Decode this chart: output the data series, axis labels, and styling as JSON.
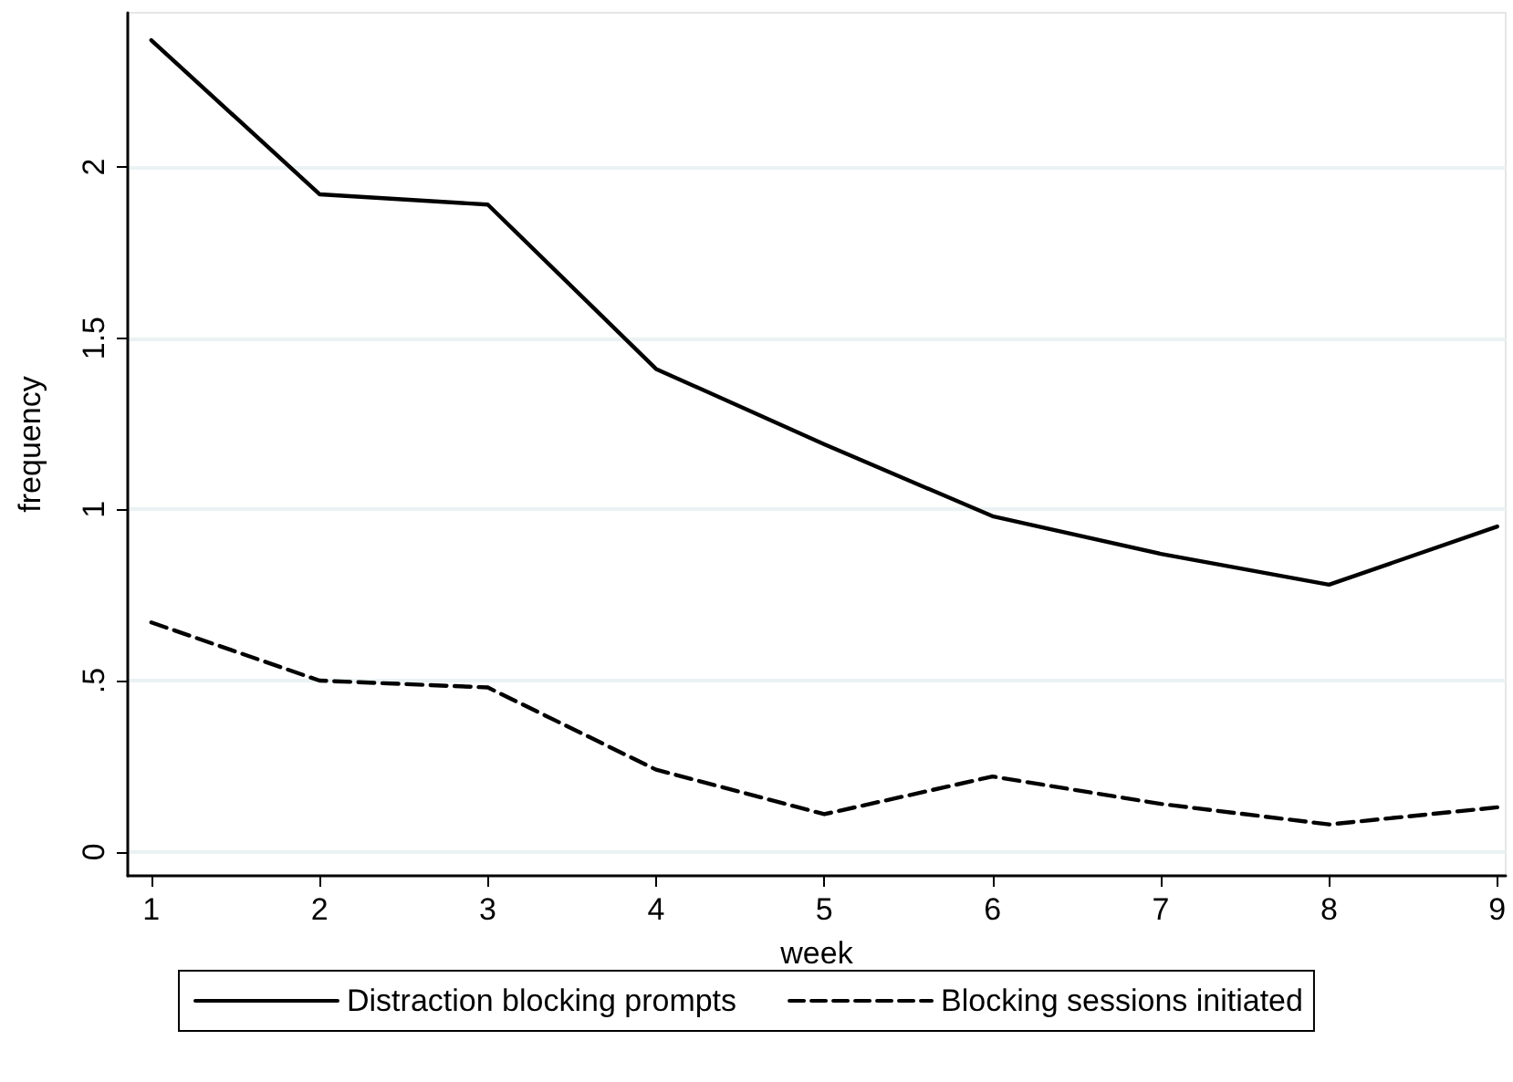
{
  "chart_data": {
    "type": "line",
    "xlabel": "week",
    "ylabel": "frequency",
    "x": [
      1,
      2,
      3,
      4,
      5,
      6,
      7,
      8,
      9
    ],
    "series": [
      {
        "name": "Distraction blocking prompts",
        "color": "#000000",
        "line_style": "solid",
        "values": [
          2.37,
          1.92,
          1.89,
          1.41,
          1.19,
          0.98,
          0.87,
          0.78,
          0.95
        ]
      },
      {
        "name": "Blocking sessions initiated",
        "color": "#000000",
        "line_style": "dashed",
        "values": [
          0.67,
          0.5,
          0.48,
          0.24,
          0.11,
          0.22,
          0.14,
          0.08,
          0.13
        ]
      }
    ],
    "xlim": [
      0.86,
      9.05
    ],
    "xticks": [
      1,
      2,
      3,
      4,
      5,
      6,
      7,
      8,
      9
    ],
    "ylim": [
      -0.07,
      2.45
    ],
    "yticks": [
      0,
      {
        "value": 0.5,
        "label": ".5"
      },
      1,
      1.5,
      2
    ],
    "grid": "y",
    "legend": "bottom",
    "marker": "none"
  }
}
